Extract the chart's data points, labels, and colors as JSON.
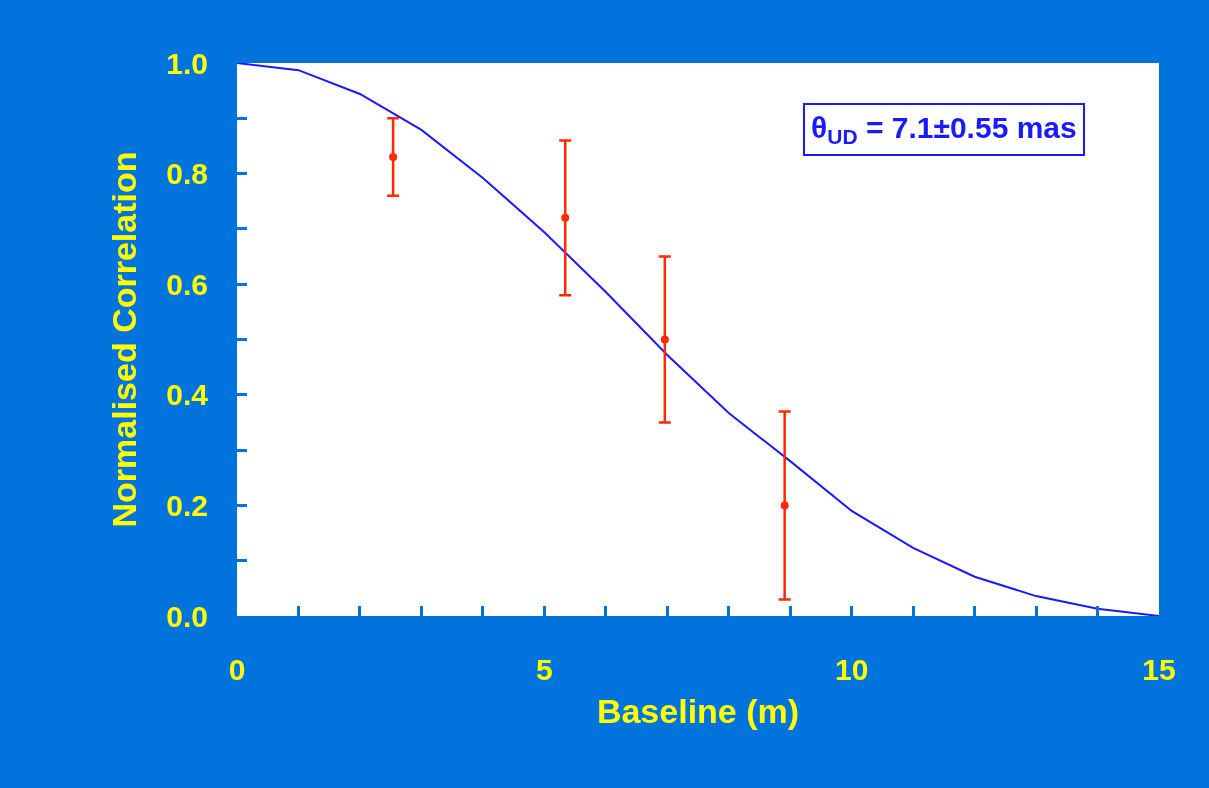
{
  "chart_data": {
    "type": "scatter",
    "xlabel": "Baseline (m)",
    "ylabel": "Normalised Correlation",
    "xlim": [
      0,
      15
    ],
    "ylim": [
      0,
      1.0
    ],
    "xticks": [
      0,
      {
        "value": 1,
        "label": null
      },
      {
        "value": 2,
        "label": null
      },
      {
        "value": 3,
        "label": null
      },
      {
        "value": 4,
        "label": null
      },
      5,
      {
        "value": 6,
        "label": null
      },
      {
        "value": 7,
        "label": null
      },
      {
        "value": 8,
        "label": null
      },
      {
        "value": 9,
        "label": null
      },
      10,
      {
        "value": 11,
        "label": null
      },
      {
        "value": 12,
        "label": null
      },
      {
        "value": 13,
        "label": null
      },
      {
        "value": 14,
        "label": null
      },
      15
    ],
    "yticks": [
      {
        "value": 0,
        "label": "0.0"
      },
      {
        "value": 0.1,
        "label": null
      },
      {
        "value": 0.2,
        "label": "0.2"
      },
      {
        "value": 0.3,
        "label": null
      },
      {
        "value": 0.4,
        "label": "0.4"
      },
      {
        "value": 0.5,
        "label": null
      },
      {
        "value": 0.6,
        "label": "0.6"
      },
      {
        "value": 0.7,
        "label": null
      },
      {
        "value": 0.8,
        "label": "0.8"
      },
      {
        "value": 0.9,
        "label": null
      },
      {
        "value": 1.0,
        "label": "1.0"
      }
    ],
    "legend": false,
    "series": [
      {
        "type": "line",
        "color": "#1a1aff",
        "line_style": "solid",
        "marker": "none",
        "x": [
          0,
          1,
          2,
          3,
          4,
          5,
          6,
          7,
          8,
          9,
          10,
          11,
          12,
          13,
          14,
          15
        ],
        "values": [
          1.0,
          0.987,
          0.944,
          0.879,
          0.792,
          0.694,
          0.586,
          0.472,
          0.367,
          0.28,
          0.19,
          0.123,
          0.071,
          0.036,
          0.013,
          0
        ]
      },
      {
        "color": "#ff2a00",
        "marker": "circle",
        "x": [
          2.54,
          5.34,
          6.96,
          8.91
        ],
        "values": [
          0.83,
          0.72,
          0.5,
          0.2
        ],
        "errors": [
          [
            0.76,
            0.9
          ],
          [
            0.58,
            0.86
          ],
          [
            0.35,
            0.65
          ],
          [
            0.03,
            0.37
          ]
        ]
      }
    ],
    "annotations": [
      "θ$_{UD}$ = 7.1±0.55 mas"
    ]
  }
}
